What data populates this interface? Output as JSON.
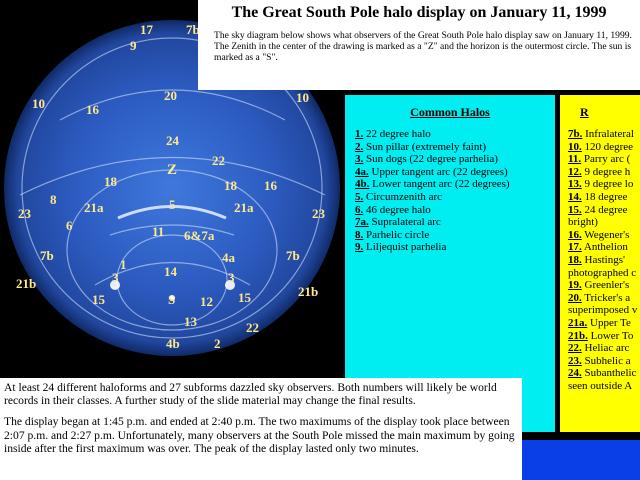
{
  "header": {
    "title": "The Great South Pole halo display on January 11, 1999",
    "description": "The sky diagram below shows what observers of the Great South Pole halo display saw on January 11, 1999. The Zenith in the center of the drawing is marked as a \"Z\" and the horizon is the outermost circle. The sun is marked as a \"S\"."
  },
  "diagram_labels": [
    {
      "t": "17"
    },
    {
      "t": "7b"
    },
    {
      "t": "9"
    },
    {
      "t": "20"
    },
    {
      "t": "10"
    },
    {
      "t": "16"
    },
    {
      "t": "10"
    },
    {
      "t": "24"
    },
    {
      "t": "22"
    },
    {
      "t": "Z"
    },
    {
      "t": "18"
    },
    {
      "t": "18"
    },
    {
      "t": "16"
    },
    {
      "t": "8"
    },
    {
      "t": "21a"
    },
    {
      "t": "5"
    },
    {
      "t": "21a"
    },
    {
      "t": "23"
    },
    {
      "t": "6"
    },
    {
      "t": "23"
    },
    {
      "t": "11"
    },
    {
      "t": "6&7a"
    },
    {
      "t": "7b"
    },
    {
      "t": "7b"
    },
    {
      "t": "4a"
    },
    {
      "t": "3"
    },
    {
      "t": "1"
    },
    {
      "t": "14"
    },
    {
      "t": "3"
    },
    {
      "t": "21b"
    },
    {
      "t": "21b"
    },
    {
      "t": "15"
    },
    {
      "t": "S"
    },
    {
      "t": "12"
    },
    {
      "t": "15"
    },
    {
      "t": "13"
    },
    {
      "t": "22"
    },
    {
      "t": "2"
    },
    {
      "t": "4b"
    }
  ],
  "common_halos": {
    "heading": "Common Halos",
    "items": [
      {
        "num": "1.",
        "text": " 22 degree halo"
      },
      {
        "num": "2.",
        "text": " Sun pillar (extremely faint)"
      },
      {
        "num": "3.",
        "text": " Sun dogs (22 degree parhelia)"
      },
      {
        "num": "4a.",
        "text": " Upper tangent arc (22 degrees)"
      },
      {
        "num": "4b.",
        "text": " Lower tangent arc (22 degrees)"
      },
      {
        "num": "5.",
        "text": " Circumzenith arc"
      },
      {
        "num": "6.",
        "text": " 46 degree halo"
      },
      {
        "num": "7a.",
        "text": " Supralateral arc"
      },
      {
        "num": "8.",
        "text": " Parhelic circle"
      },
      {
        "num": "9.",
        "text": " Liljequist parhelia"
      }
    ]
  },
  "rare_halos": {
    "heading": "R",
    "items": [
      {
        "num": "7b.",
        "text": " Infralateral"
      },
      {
        "num": "10.",
        "text": " 120 degree"
      },
      {
        "num": "11.",
        "text": " Parry arc ("
      },
      {
        "num": "12.",
        "text": " 9 degree h"
      },
      {
        "num": "13.",
        "text": " 9 degree lo"
      },
      {
        "num": "14.",
        "text": " 18 degree"
      },
      {
        "num": "15.",
        "text": " 24 degree"
      },
      {
        "num": "",
        "text": "bright)"
      },
      {
        "num": "16.",
        "text": " Wegener's"
      },
      {
        "num": "17.",
        "text": " Anthelion"
      },
      {
        "num": "18.",
        "text": " Hastings'"
      },
      {
        "num": "",
        "text": "photographed c"
      },
      {
        "num": "19.",
        "text": " Greenler's"
      },
      {
        "num": "20.",
        "text": " Tricker's a"
      },
      {
        "num": "",
        "text": "superimposed v"
      },
      {
        "num": "21a.",
        "text": " Upper Te"
      },
      {
        "num": "21b.",
        "text": " Lower To"
      },
      {
        "num": "22.",
        "text": " Heliac arc"
      },
      {
        "num": "23.",
        "text": " Subhelic a"
      },
      {
        "num": "24.",
        "text": " Subanthelic"
      },
      {
        "num": "",
        "text": "seen outside A"
      }
    ]
  },
  "body": {
    "p1": "At least 24 different haloforms and 27 subforms dazzled sky observers. Both numbers will likely be world records in their classes. A further study of the slide material may change the final results.",
    "p2": "The display began at 1:45 p.m. and ended at 2:40 p.m. The two maximums of the display took place between 2:07 p.m. and 2:27 p.m. Unfortunately, many observers at the South Pole missed the main maximum by going inside after the first maximum was over. The peak of the display lasted only two minutes."
  },
  "colors": {
    "sky": "#2b5cc4",
    "common_bg": "#00eef2",
    "rare_bg": "#ffff00",
    "label": "#ffe98a"
  }
}
